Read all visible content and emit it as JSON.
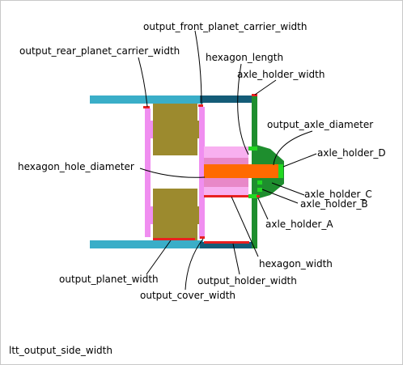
{
  "labels": {
    "output_front_planet_carrier_width": "output_front_planet_carrier_width",
    "output_rear_planet_carrier_width": "output_rear_planet_carrier_width",
    "hexagon_length": "hexagon_length",
    "axle_holder_width": "axle_holder_width",
    "output_axle_diameter": "output_axle_diameter",
    "axle_holder_D": "axle_holder_D",
    "hexagon_hole_diameter": "hexagon_hole_diameter",
    "axle_holder_C": "axle_holder_C",
    "axle_holder_B": "axle_holder_B",
    "axle_holder_A": "axle_holder_A",
    "hexagon_width": "hexagon_width",
    "output_planet_width": "output_planet_width",
    "output_holder_width": "output_holder_width",
    "output_cover_width": "output_cover_width"
  },
  "caption": "ltt_output_side_width",
  "colors": {
    "ring": "#3aaec8",
    "holder": "#145c78",
    "planet": "#9c8a2e",
    "carrier": "#f08ef0",
    "hexagon": "#f8b0f0",
    "axle": "#ff6a00",
    "axle_holder": "#1e8e2e",
    "bright_green": "#22d822",
    "marker_red": "#e82020"
  }
}
